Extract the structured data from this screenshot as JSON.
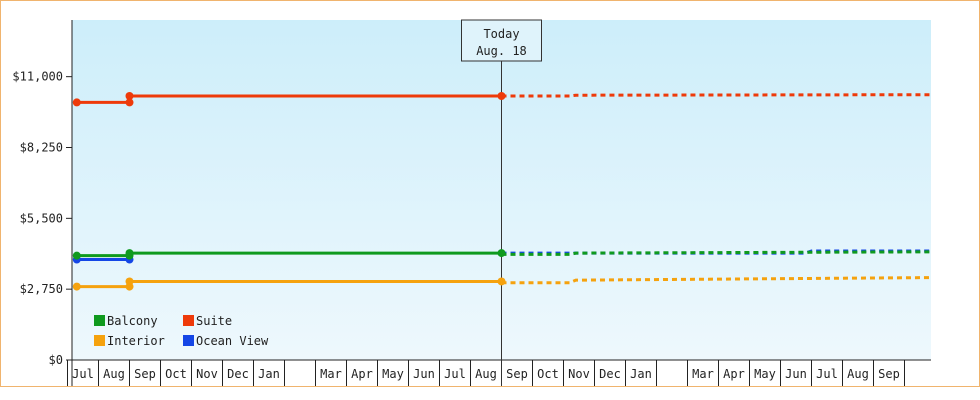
{
  "chart_data": {
    "type": "line",
    "y_ticks": [
      "$0",
      "$2,750",
      "$5,500",
      "$8,250",
      "$11,000"
    ],
    "ylim": [
      0,
      13200
    ],
    "x_ticks": [
      {
        "label": "Jul",
        "m": 0
      },
      {
        "label": "Aug",
        "m": 1
      },
      {
        "label": "Sep",
        "m": 2
      },
      {
        "label": "Oct",
        "m": 3
      },
      {
        "label": "Nov",
        "m": 4
      },
      {
        "label": "Dec",
        "m": 5
      },
      {
        "label": "Jan",
        "m": 6
      },
      {
        "label": "",
        "m": 7
      },
      {
        "label": "Mar",
        "m": 8
      },
      {
        "label": "Apr",
        "m": 9
      },
      {
        "label": "May",
        "m": 10
      },
      {
        "label": "Jun",
        "m": 11
      },
      {
        "label": "Jul",
        "m": 12
      },
      {
        "label": "Aug",
        "m": 13
      },
      {
        "label": "Sep",
        "m": 14
      },
      {
        "label": "Oct",
        "m": 15
      },
      {
        "label": "Nov",
        "m": 16
      },
      {
        "label": "Dec",
        "m": 17
      },
      {
        "label": "Jan",
        "m": 18
      },
      {
        "label": "",
        "m": 19
      },
      {
        "label": "Mar",
        "m": 20
      },
      {
        "label": "Apr",
        "m": 21
      },
      {
        "label": "May",
        "m": 22
      },
      {
        "label": "Jun",
        "m": 23
      },
      {
        "label": "Jul",
        "m": 24
      },
      {
        "label": "Aug",
        "m": 25
      },
      {
        "label": "Sep",
        "m": 26
      }
    ],
    "x_extent": [
      -0.2,
      27.5
    ],
    "today_label": [
      "Today",
      "Aug. 18"
    ],
    "today_m": 13.5,
    "series": [
      {
        "name": "Suite",
        "color": "#ee3a0a",
        "solid": [
          [
            -0.2,
            10000
          ],
          [
            1.5,
            10000
          ],
          [
            1.5,
            10250
          ],
          [
            13.5,
            10250
          ]
        ],
        "points": [
          [
            -0.2,
            10000
          ],
          [
            1.5,
            10000
          ],
          [
            1.5,
            10250
          ],
          [
            13.5,
            10250
          ]
        ],
        "dashed": [
          [
            13.5,
            10250
          ],
          [
            15.7,
            10250
          ],
          [
            15.9,
            10280
          ],
          [
            27.5,
            10300
          ]
        ]
      },
      {
        "name": "Ocean View",
        "color": "#1446e6",
        "solid": [
          [
            -0.2,
            3900
          ],
          [
            1.5,
            3900
          ]
        ],
        "points": [
          [
            -0.2,
            3900
          ],
          [
            1.5,
            3900
          ]
        ],
        "dashed": [
          [
            13.5,
            4150
          ],
          [
            23.3,
            4150
          ],
          [
            23.5,
            4230
          ],
          [
            27.5,
            4230
          ]
        ]
      },
      {
        "name": "Balcony",
        "color": "#0f9a1e",
        "solid": [
          [
            -0.2,
            4050
          ],
          [
            1.5,
            4050
          ],
          [
            1.5,
            4150
          ],
          [
            13.5,
            4150
          ]
        ],
        "points": [
          [
            -0.2,
            4050
          ],
          [
            1.5,
            4050
          ],
          [
            1.5,
            4150
          ],
          [
            13.5,
            4150
          ]
        ],
        "dashed": [
          [
            13.5,
            4100
          ],
          [
            15.7,
            4100
          ],
          [
            15.9,
            4150
          ],
          [
            27.5,
            4200
          ]
        ]
      },
      {
        "name": "Interior",
        "color": "#f5a20e",
        "solid": [
          [
            -0.2,
            2850
          ],
          [
            1.5,
            2850
          ],
          [
            1.5,
            3050
          ],
          [
            13.5,
            3050
          ]
        ],
        "points": [
          [
            -0.2,
            2850
          ],
          [
            1.5,
            2850
          ],
          [
            1.5,
            3050
          ],
          [
            13.5,
            3050
          ]
        ],
        "dashed": [
          [
            13.5,
            3000
          ],
          [
            15.7,
            3000
          ],
          [
            15.9,
            3100
          ],
          [
            27.5,
            3200
          ]
        ]
      }
    ],
    "legend": [
      {
        "name": "Balcony",
        "color": "#0f9a1e"
      },
      {
        "name": "Suite",
        "color": "#ee3a0a"
      },
      {
        "name": "Interior",
        "color": "#f5a20e"
      },
      {
        "name": "Ocean View",
        "color": "#1446e6"
      }
    ],
    "legend_position": "bottom-left",
    "background_gradient": [
      "#cdeefa",
      "#eef8fd"
    ]
  }
}
